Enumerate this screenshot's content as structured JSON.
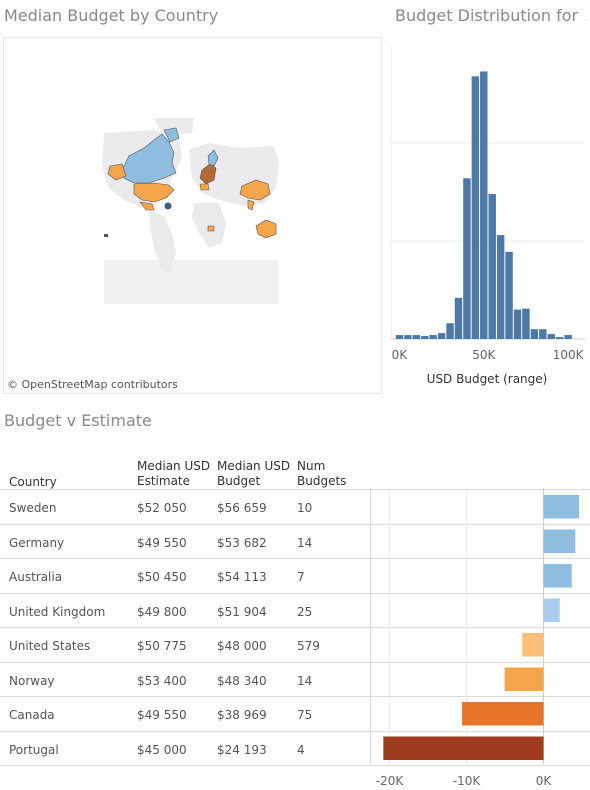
{
  "map": {
    "title": "Median Budget by Country",
    "attribution": "© OpenStreetMap contributors",
    "colors": {
      "land": "#ebeaec",
      "blue": "#8fbde0",
      "orange": "#f5a54a",
      "dark_orange": "#b56a35",
      "navy": "#3b5e8c"
    }
  },
  "histogram": {
    "title": "Budget Distribution for ..",
    "color": "#4e79a7",
    "chart_data": {
      "type": "bar",
      "title": "Budget Distribution for ..",
      "xlabel": "USD Budget (range)",
      "ylabel": "",
      "x_ticks": [
        "0K",
        "50K",
        "100K"
      ],
      "x_tick_values": [
        0,
        50000,
        100000
      ],
      "bin_width": 5000,
      "bins_start": [
        0,
        5000,
        10000,
        15000,
        20000,
        25000,
        30000,
        35000,
        40000,
        45000,
        50000,
        55000,
        60000,
        65000,
        70000,
        75000,
        80000,
        85000,
        90000,
        95000,
        100000,
        105000
      ],
      "values": [
        4,
        4,
        4,
        3,
        4,
        6,
        16,
        42,
        164,
        268,
        273,
        148,
        106,
        89,
        30,
        31,
        10,
        10,
        5,
        2,
        4,
        0
      ],
      "ylim": [
        0,
        300
      ],
      "grid": true
    }
  },
  "table": {
    "title": "Budget v Estimate",
    "headers": {
      "country": "Country",
      "estimate_1": "Median USD",
      "estimate_2": "Estimate",
      "budget_1": "Median USD",
      "budget_2": "Budget",
      "num_1": "Num",
      "num_2": "Budgets"
    },
    "rows": [
      {
        "country": "Sweden",
        "estimate": "$52 050",
        "budget": "$56 659",
        "num": "10"
      },
      {
        "country": "Germany",
        "estimate": "$49 550",
        "budget": "$53 682",
        "num": "14"
      },
      {
        "country": "Australia",
        "estimate": "$50 450",
        "budget": "$54 113",
        "num": "7"
      },
      {
        "country": "United Kingdom",
        "estimate": "$49 800",
        "budget": "$51 904",
        "num": "25"
      },
      {
        "country": "United States",
        "estimate": "$50 775",
        "budget": "$48 000",
        "num": "579"
      },
      {
        "country": "Norway",
        "estimate": "$53 400",
        "budget": "$48 340",
        "num": "14"
      },
      {
        "country": "Canada",
        "estimate": "$49 550",
        "budget": "$38 969",
        "num": "75"
      },
      {
        "country": "Portugal",
        "estimate": "$45 000",
        "budget": "$24 193",
        "num": "4"
      }
    ]
  },
  "chart_data": [
    {
      "type": "bar",
      "title": "Budget v Estimate",
      "orientation": "horizontal",
      "categories": [
        "Sweden",
        "Germany",
        "Australia",
        "United Kingdom",
        "United States",
        "Norway",
        "Canada",
        "Portugal"
      ],
      "values": [
        4609,
        4132,
        3663,
        2104,
        -2775,
        -5060,
        -10581,
        -20807
      ],
      "colors": [
        "#8fbde0",
        "#8fbde0",
        "#8fbde0",
        "#a9cdea",
        "#fbbf7a",
        "#f5a54a",
        "#e8742a",
        "#9f3b1f"
      ],
      "x_ticks": [
        "-20K",
        "-10K",
        "0K"
      ],
      "x_tick_values": [
        -20000,
        -10000,
        0
      ],
      "xlim": [
        -21500,
        5000
      ],
      "xlabel": "",
      "ylabel": ""
    }
  ]
}
